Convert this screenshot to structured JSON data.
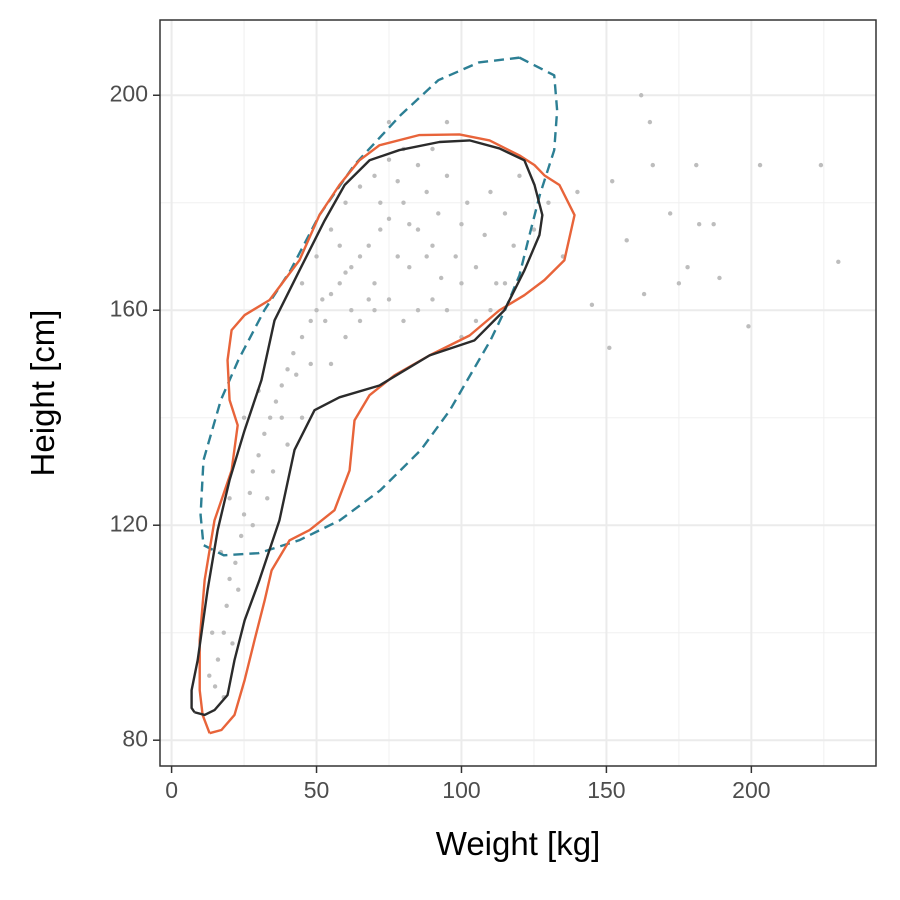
{
  "chart_data": {
    "type": "scatter",
    "xlabel": "Weight [kg]",
    "ylabel": "Height [cm]",
    "xlim": [
      -4,
      243
    ],
    "ylim": [
      75.2,
      214
    ],
    "xticks": [
      0,
      50,
      100,
      150,
      200
    ],
    "yticks": [
      80,
      120,
      160,
      200
    ],
    "xminor": [
      25,
      75,
      125,
      175,
      225
    ],
    "yminor": [
      100,
      140,
      180
    ],
    "grid": true,
    "points": {
      "color": "#bdbdbd",
      "x": [
        162,
        165,
        181,
        203,
        224,
        230,
        199,
        163,
        166,
        172,
        178,
        189,
        187,
        152,
        157,
        145,
        151,
        182,
        175,
        15,
        16,
        18,
        19,
        20,
        22,
        24,
        25,
        27,
        28,
        30,
        32,
        34,
        36,
        38,
        40,
        42,
        45,
        48,
        50,
        52,
        55,
        58,
        60,
        62,
        65,
        68,
        70,
        72,
        75,
        78,
        80,
        82,
        85,
        88,
        90,
        92,
        95,
        98,
        100,
        102,
        105,
        108,
        110,
        112,
        115,
        118,
        120,
        125,
        130,
        135,
        140,
        55,
        60,
        65,
        70,
        75,
        80,
        85,
        90,
        95,
        100,
        45,
        50,
        55,
        60,
        65,
        70,
        75,
        80,
        85,
        90,
        35,
        40,
        45,
        30,
        25,
        20,
        17,
        14,
        13,
        18,
        100,
        105,
        110,
        115,
        95,
        75,
        62,
        68,
        72,
        78,
        82,
        88,
        93,
        58,
        53,
        48,
        43,
        38,
        33,
        28,
        23,
        21
      ],
      "y": [
        200,
        195,
        187,
        187,
        187,
        169,
        157,
        163,
        187,
        178,
        168,
        166,
        176,
        184,
        173,
        161,
        153,
        176,
        165,
        90,
        95,
        100,
        105,
        110,
        113,
        118,
        122,
        126,
        130,
        133,
        137,
        140,
        143,
        146,
        149,
        152,
        155,
        158,
        160,
        162,
        163,
        165,
        167,
        160,
        170,
        172,
        165,
        175,
        177,
        170,
        180,
        168,
        175,
        182,
        172,
        178,
        185,
        170,
        176,
        180,
        168,
        174,
        182,
        165,
        178,
        172,
        185,
        175,
        180,
        170,
        182,
        150,
        155,
        158,
        160,
        162,
        158,
        160,
        162,
        160,
        165,
        165,
        170,
        175,
        180,
        183,
        185,
        188,
        190,
        187,
        190,
        130,
        135,
        140,
        145,
        140,
        125,
        115,
        100,
        92,
        88,
        155,
        158,
        160,
        165,
        195,
        195,
        168,
        162,
        180,
        184,
        176,
        170,
        166,
        172,
        158,
        150,
        148,
        140,
        125,
        120,
        108,
        98
      ]
    },
    "contours": [
      {
        "color": "#2c7f94",
        "dash": true,
        "x": [
          120,
          132,
          133,
          132,
          127,
          123,
          120,
          115,
          110,
          103,
          96,
          86,
          72,
          58,
          44,
          30,
          18,
          11,
          10,
          11,
          17,
          23,
          32,
          41,
          51,
          63,
          79,
          92,
          106,
          120
        ],
        "y": [
          207,
          203.7,
          197.2,
          189.8,
          181.4,
          173,
          166.5,
          160,
          154.4,
          147.9,
          141.4,
          134,
          126.5,
          120.9,
          117.2,
          114.8,
          114.4,
          116.3,
          121.9,
          132.1,
          143.3,
          150.7,
          160,
          167.4,
          177.7,
          187,
          196.3,
          202.8,
          206.1,
          207
        ]
      },
      {
        "color": "#e8643a",
        "dash": false,
        "x": [
          13.1,
          17.2,
          21.7,
          25.2,
          28.6,
          32.1,
          34.5,
          40.7,
          47.6,
          56.2,
          61.4,
          63.1,
          68.3,
          76.9,
          89,
          102.8,
          113.1,
          121.7,
          128.6,
          135.5,
          139,
          133.8,
          128.6,
          125.2,
          120,
          109.7,
          99.3,
          85.5,
          71.7,
          64.8,
          57.9,
          51,
          44.1,
          33.8,
          25.2,
          20.7,
          19.3,
          20,
          22.8,
          20.7,
          14.8,
          11.4,
          9.7,
          9.7,
          10.7,
          13.1
        ],
        "y": [
          81.3,
          81.9,
          84.7,
          91.2,
          98.6,
          106,
          111.6,
          117.2,
          119.1,
          122.8,
          130.2,
          139.5,
          144.2,
          147.9,
          151.6,
          155.3,
          160,
          162.8,
          165.6,
          169.3,
          177.7,
          183.3,
          185.1,
          187,
          188.8,
          191.6,
          192.7,
          192.6,
          190.7,
          187.9,
          183.3,
          177.7,
          169.3,
          161.9,
          159.1,
          156.3,
          150.7,
          143.3,
          138.6,
          130.2,
          120.9,
          109.8,
          98.6,
          89.3,
          84.7,
          81.3
        ]
      },
      {
        "color": "#2b2b2b",
        "dash": false,
        "x": [
          7.9,
          11.4,
          14.8,
          19.3,
          21.7,
          25.2,
          30.3,
          37.2,
          42.4,
          49.3,
          57.9,
          71.7,
          89,
          104.5,
          114.8,
          121.7,
          126.9,
          127.9,
          125.2,
          121.7,
          113.1,
          102.8,
          92.4,
          78.6,
          68.3,
          59.7,
          52.8,
          44.1,
          35.5,
          31,
          25.2,
          20,
          15.9,
          12.4,
          9,
          6.9,
          6.9,
          7.9
        ],
        "y": [
          85.2,
          84.7,
          85.6,
          88.4,
          94.9,
          102.3,
          109.8,
          120.9,
          134,
          141.4,
          143.8,
          146,
          151.6,
          154.4,
          160,
          167.4,
          174,
          177.7,
          183.3,
          187.9,
          190.1,
          191.6,
          191.3,
          189.8,
          187.9,
          183.3,
          176.7,
          167.4,
          158.1,
          147,
          137.7,
          128.4,
          119.1,
          107.9,
          94.9,
          89.3,
          86,
          85.2
        ]
      }
    ]
  }
}
